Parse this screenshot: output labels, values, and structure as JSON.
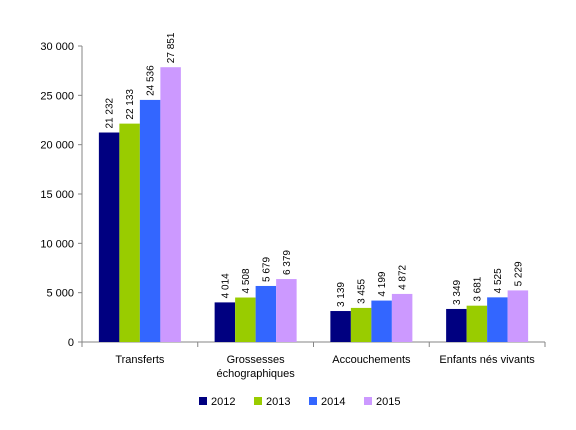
{
  "chart_data": {
    "type": "bar",
    "categories": [
      "Transferts",
      "Grossesses échographiques",
      "Accouchements",
      "Enfants nés vivants"
    ],
    "category_lines": [
      [
        "Transferts"
      ],
      [
        "Grossesses",
        "échographiques"
      ],
      [
        "Accouchements"
      ],
      [
        "Enfants nés vivants"
      ]
    ],
    "series": [
      {
        "name": "2012",
        "color": "#000080",
        "values": [
          21232,
          4014,
          3139,
          3349
        ],
        "labels": [
          "21 232",
          "4 014",
          "3 139",
          "3 349"
        ]
      },
      {
        "name": "2013",
        "color": "#99cc00",
        "values": [
          22133,
          4508,
          3455,
          3681
        ],
        "labels": [
          "22 133",
          "4 508",
          "3 455",
          "3 681"
        ]
      },
      {
        "name": "2014",
        "color": "#3366ff",
        "values": [
          24536,
          5679,
          4199,
          4525
        ],
        "labels": [
          "24 536",
          "5 679",
          "4 199",
          "4 525"
        ]
      },
      {
        "name": "2015",
        "color": "#cc99ff",
        "values": [
          27851,
          6379,
          4872,
          5229
        ],
        "labels": [
          "27 851",
          "6 379",
          "4 872",
          "5 229"
        ]
      }
    ],
    "y_ticks": [
      "0",
      "5 000",
      "10 000",
      "15 000",
      "20 000",
      "25 000",
      "30 000"
    ],
    "ylim": [
      0,
      30000
    ],
    "title": "",
    "xlabel": "",
    "ylabel": "",
    "grid": false,
    "legend_position": "bottom"
  }
}
